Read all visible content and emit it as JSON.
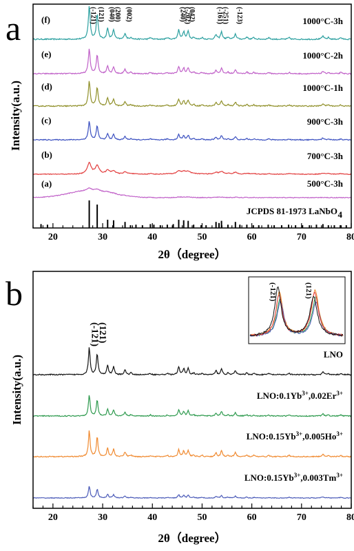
{
  "chart_data": [
    {
      "panel": "a",
      "type": "line",
      "xlabel": "2θ（degree）",
      "ylabel": "Intensity(a.u.)",
      "xlim": [
        16,
        80
      ],
      "xticks": [
        20,
        30,
        40,
        50,
        60,
        70,
        80
      ],
      "peak_labels": [
        {
          "text": "(-121)",
          "x": 27.3
        },
        {
          "text": "(121)",
          "x": 28.9
        },
        {
          "text": "(040)",
          "x": 31.0
        },
        {
          "text": "(200)",
          "x": 32.2
        },
        {
          "text": "(002)",
          "x": 34.5
        },
        {
          "text": "(240)",
          "x": 45.3
        },
        {
          "text": "(-202)",
          "x": 46.3
        },
        {
          "text": "(042)",
          "x": 47.2
        },
        {
          "text": "(-161)",
          "x": 52.8
        },
        {
          "text": "(-251)",
          "x": 53.9
        },
        {
          "text": "(-123)",
          "x": 56.7
        }
      ],
      "series": [
        {
          "id": "f",
          "tag": "(f)",
          "name": "1000°C-3h",
          "color": "#2a9f9f",
          "amplitude": 1.0
        },
        {
          "id": "e",
          "tag": "(e)",
          "name": "1000°C-2h",
          "color": "#c060c8",
          "amplitude": 0.85
        },
        {
          "id": "d",
          "tag": "(d)",
          "name": "1000°C-1h",
          "color": "#8f8f28",
          "amplitude": 0.85
        },
        {
          "id": "c",
          "tag": "(c)",
          "name": "900°C-3h",
          "color": "#3a4fc0",
          "amplitude": 0.75
        },
        {
          "id": "b",
          "tag": "(b)",
          "name": "700°C-3h",
          "color": "#e23c3c",
          "amplitude": 0.55
        },
        {
          "id": "a",
          "tag": "(a)",
          "name": "500°C-3h",
          "color": "#c060c8",
          "amplitude": 0.12
        }
      ],
      "reference": {
        "label_prefix": "JCPDS 81-1973 LaNbO",
        "label_subscript": "4",
        "lines": [
          {
            "x": 17.6,
            "h": 0.14
          },
          {
            "x": 18.9,
            "h": 0.12
          },
          {
            "x": 27.3,
            "h": 1.0
          },
          {
            "x": 28.9,
            "h": 0.85
          },
          {
            "x": 31.0,
            "h": 0.3
          },
          {
            "x": 32.2,
            "h": 0.28
          },
          {
            "x": 34.5,
            "h": 0.22
          },
          {
            "x": 35.6,
            "h": 0.1
          },
          {
            "x": 36.7,
            "h": 0.12
          },
          {
            "x": 38.0,
            "h": 0.1
          },
          {
            "x": 39.6,
            "h": 0.14
          },
          {
            "x": 40.3,
            "h": 0.12
          },
          {
            "x": 41.6,
            "h": 0.1
          },
          {
            "x": 43.0,
            "h": 0.12
          },
          {
            "x": 44.2,
            "h": 0.14
          },
          {
            "x": 45.3,
            "h": 0.3
          },
          {
            "x": 46.3,
            "h": 0.28
          },
          {
            "x": 47.2,
            "h": 0.26
          },
          {
            "x": 48.3,
            "h": 0.12
          },
          {
            "x": 49.8,
            "h": 0.1
          },
          {
            "x": 50.8,
            "h": 0.1
          },
          {
            "x": 52.8,
            "h": 0.22
          },
          {
            "x": 53.4,
            "h": 0.18
          },
          {
            "x": 53.9,
            "h": 0.26
          },
          {
            "x": 55.2,
            "h": 0.12
          },
          {
            "x": 56.7,
            "h": 0.22
          },
          {
            "x": 57.6,
            "h": 0.12
          },
          {
            "x": 59.0,
            "h": 0.12
          },
          {
            "x": 60.3,
            "h": 0.1
          },
          {
            "x": 61.4,
            "h": 0.1
          },
          {
            "x": 63.3,
            "h": 0.12
          },
          {
            "x": 64.5,
            "h": 0.1
          },
          {
            "x": 66.0,
            "h": 0.1
          },
          {
            "x": 67.4,
            "h": 0.12
          },
          {
            "x": 68.8,
            "h": 0.1
          },
          {
            "x": 70.2,
            "h": 0.1
          },
          {
            "x": 71.6,
            "h": 0.1
          },
          {
            "x": 73.0,
            "h": 0.12
          },
          {
            "x": 74.3,
            "h": 0.14
          },
          {
            "x": 75.4,
            "h": 0.1
          },
          {
            "x": 76.6,
            "h": 0.1
          },
          {
            "x": 77.8,
            "h": 0.1
          },
          {
            "x": 79.0,
            "h": 0.1
          }
        ]
      }
    },
    {
      "panel": "b",
      "type": "line",
      "xlabel": "2θ（degree）",
      "ylabel": "Intensity(a.u.)",
      "xlim": [
        16,
        80
      ],
      "xticks": [
        20,
        30,
        40,
        50,
        60,
        70,
        80
      ],
      "peak_labels": [
        {
          "text": "(-121)",
          "x": 27.3
        },
        {
          "text": "(121)",
          "x": 28.9
        }
      ],
      "series": [
        {
          "id": "lno",
          "name": "LNO",
          "color": "#111111",
          "amplitude": 1.0
        },
        {
          "id": "er",
          "name": "LNO:0.1Yb",
          "sup1": "3+",
          "mid": ",0.02Er",
          "sup2": "3+",
          "color": "#2e9a4e",
          "amplitude": 0.9
        },
        {
          "id": "ho",
          "name": "LNO:0.15Yb",
          "sup1": "3+",
          "mid": ",0.005Ho",
          "sup2": "3+",
          "color": "#f08a30",
          "amplitude": 1.05
        },
        {
          "id": "tm",
          "name": "LNO:0.15Yb",
          "sup1": "3+",
          "mid": ",0.003Tm",
          "sup2": "3+",
          "color": "#4a5ab8",
          "amplitude": 0.65
        }
      ],
      "inset": {
        "peak_labels": [
          "(-121)",
          "(121)"
        ]
      }
    }
  ]
}
